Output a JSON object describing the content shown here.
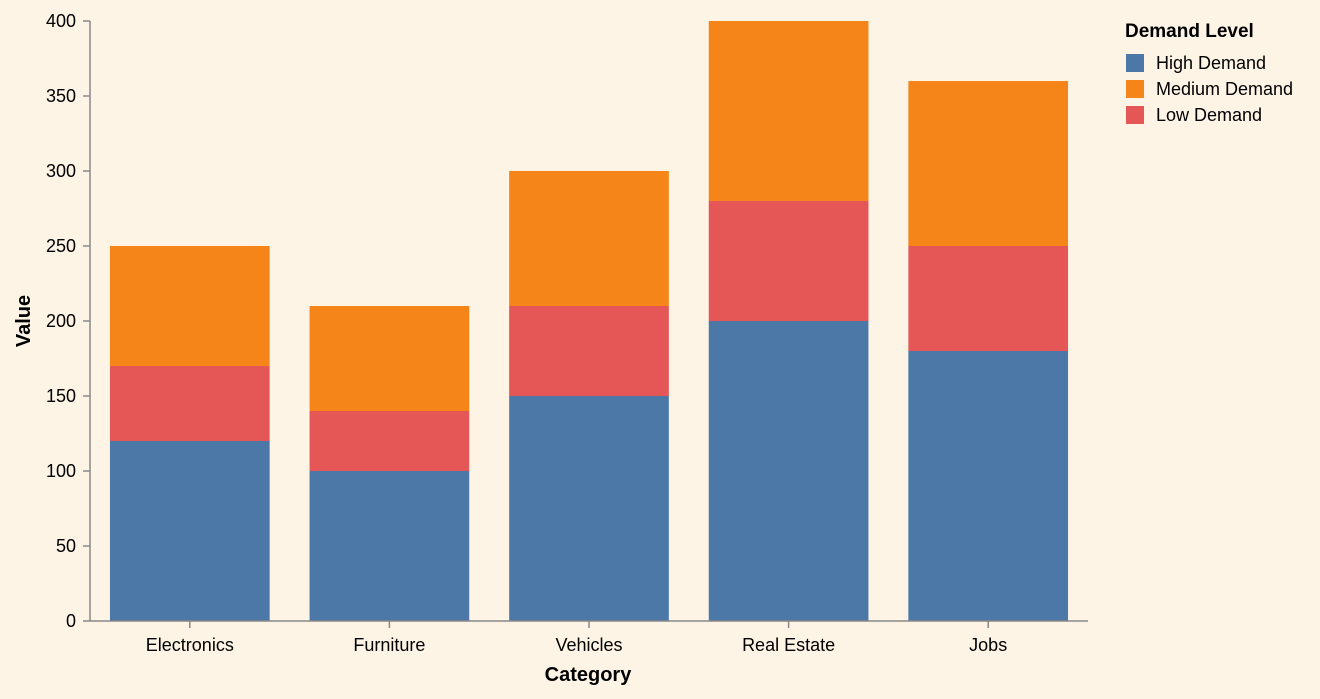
{
  "chart_data": {
    "type": "bar",
    "stacked": true,
    "categories": [
      "Electronics",
      "Furniture",
      "Vehicles",
      "Real Estate",
      "Jobs"
    ],
    "series": [
      {
        "name": "High Demand",
        "values": [
          120,
          100,
          150,
          200,
          180
        ],
        "color": "#4c78a8"
      },
      {
        "name": "Low Demand",
        "values": [
          50,
          40,
          60,
          80,
          70
        ],
        "color": "#e45756"
      },
      {
        "name": "Medium Demand",
        "values": [
          80,
          70,
          90,
          120,
          110
        ],
        "color": "#f58518"
      }
    ],
    "stack_order": [
      "High Demand",
      "Low Demand",
      "Medium Demand"
    ],
    "xlabel": "Category",
    "ylabel": "Value",
    "ylim": [
      0,
      400
    ],
    "yticks": [
      0,
      50,
      100,
      150,
      200,
      250,
      300,
      350,
      400
    ],
    "grid": false,
    "legend": {
      "title": "Demand Level",
      "placement": "top-right",
      "entries": [
        "High Demand",
        "Medium Demand",
        "Low Demand"
      ]
    }
  },
  "colors": {
    "background": "#fdf4e6",
    "axis": "#888888"
  }
}
